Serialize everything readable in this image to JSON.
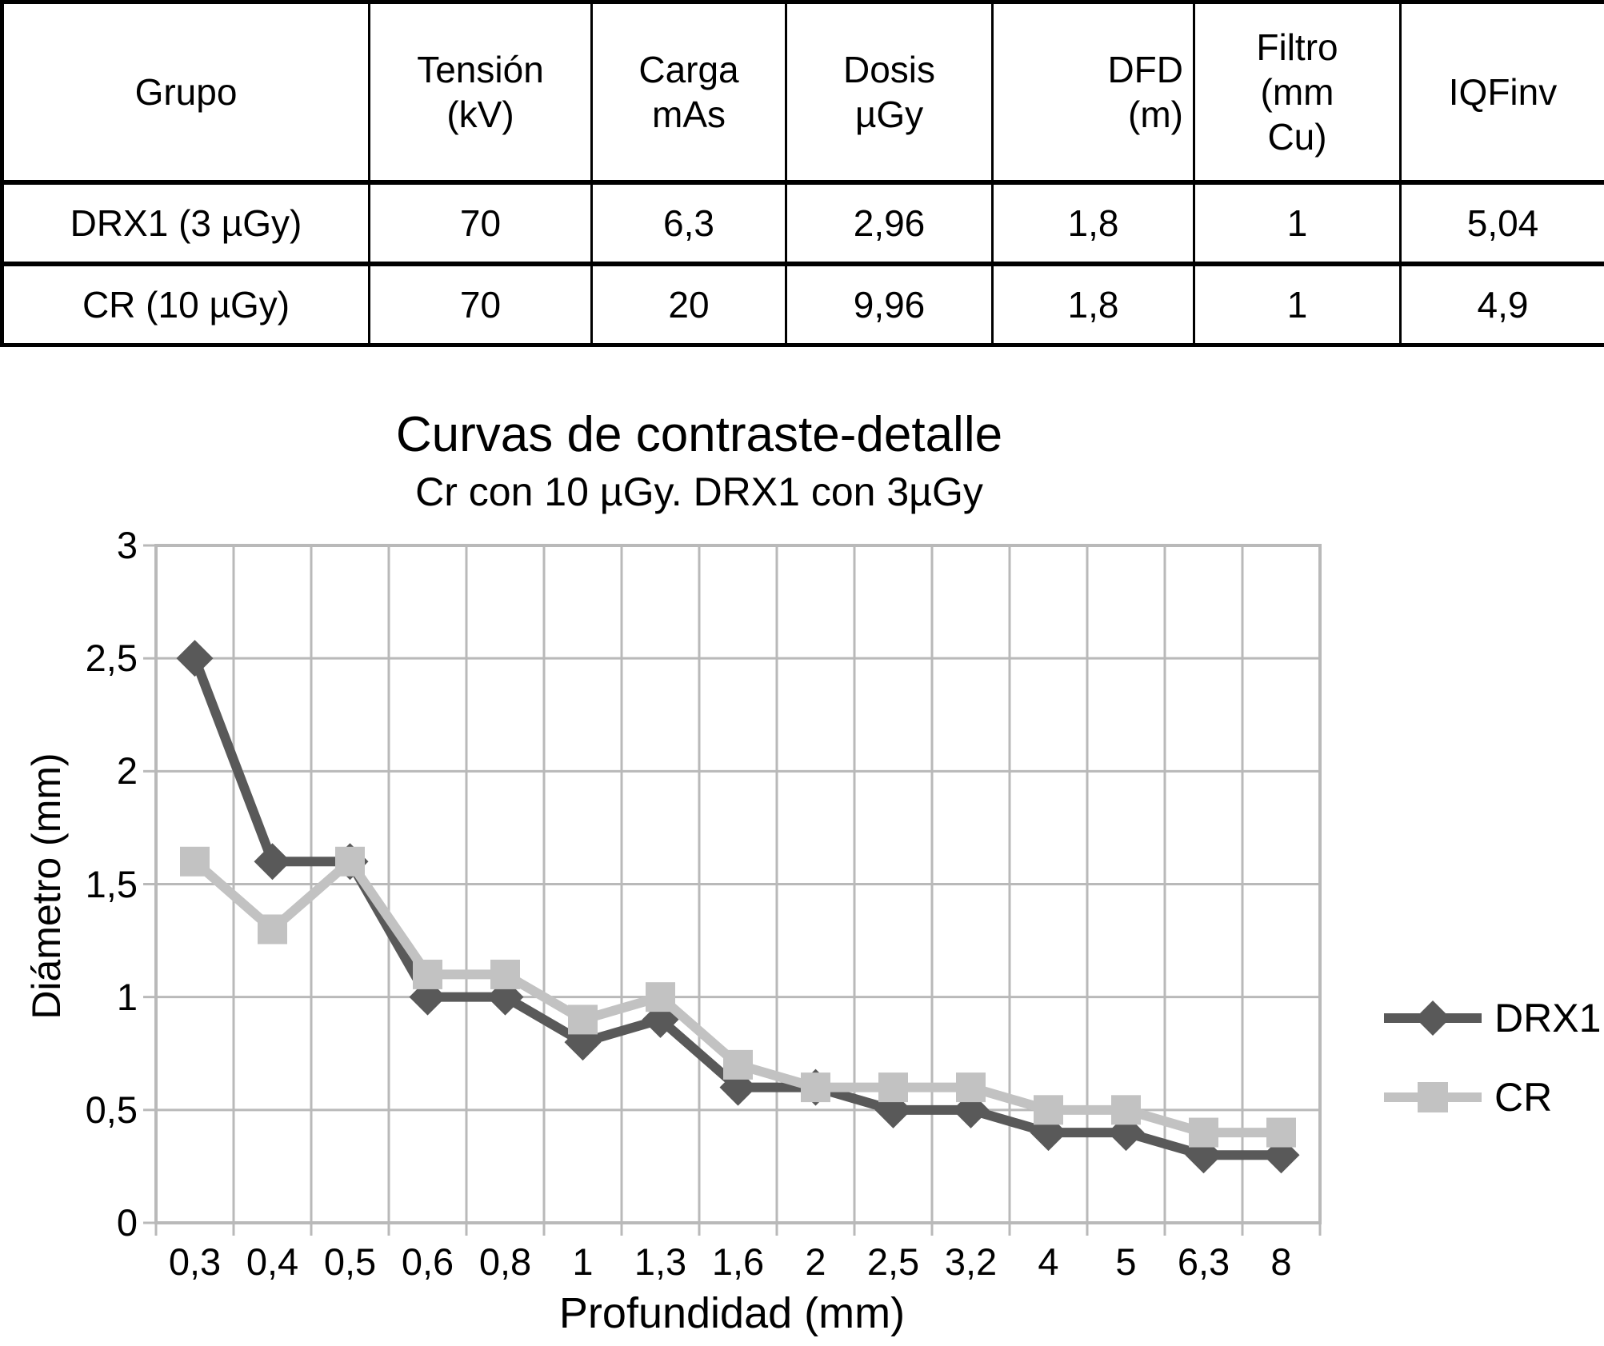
{
  "table": {
    "header": [
      "Grupo",
      "Tensión\n(kV)",
      "Carga\nmAs",
      "Dosis\nµGy",
      "DFD\n(m)",
      "Filtro\n(mm\nCu)",
      "IQFinv"
    ],
    "rows": [
      [
        "DRX1 (3 µGy)",
        "70",
        "6,3",
        "2,96",
        "1,8",
        "1",
        "5,04"
      ],
      [
        "CR (10 µGy)",
        "70",
        "20",
        "9,96",
        "1,8",
        "1",
        "4,9"
      ]
    ]
  },
  "chart_data": {
    "type": "line",
    "title": "Curvas de contraste-detalle",
    "subtitle": "Cr con 10 µGy. DRX1 con 3µGy",
    "xlabel": "Profundidad (mm)",
    "ylabel": "Diámetro (mm)",
    "categories": [
      "0,3",
      "0,4",
      "0,5",
      "0,6",
      "0,8",
      "1",
      "1,3",
      "1,6",
      "2",
      "2,5",
      "3,2",
      "4",
      "5",
      "6,3",
      "8"
    ],
    "series": [
      {
        "name": "DRX1",
        "marker": "diamond",
        "color": "#595959",
        "values": [
          2.5,
          1.6,
          1.6,
          1.0,
          1.0,
          0.8,
          0.9,
          0.6,
          0.6,
          0.5,
          0.5,
          0.4,
          0.4,
          0.3,
          0.3
        ]
      },
      {
        "name": "CR",
        "marker": "square",
        "color": "#c2c2c2",
        "values": [
          1.6,
          1.3,
          1.6,
          1.1,
          1.1,
          0.9,
          1.0,
          0.7,
          0.6,
          0.6,
          0.6,
          0.5,
          0.5,
          0.4,
          0.4
        ]
      }
    ],
    "ylim": [
      0,
      3
    ],
    "ytick_step": 0.5,
    "ytick_labels": [
      "0",
      "0,5",
      "1",
      "1,5",
      "2",
      "2,5",
      "3"
    ],
    "grid": true,
    "legend_position": "right"
  },
  "colors": {
    "grid": "#b9b9b9",
    "table_border": "#000000",
    "text": "#000000",
    "background": "#ffffff"
  }
}
